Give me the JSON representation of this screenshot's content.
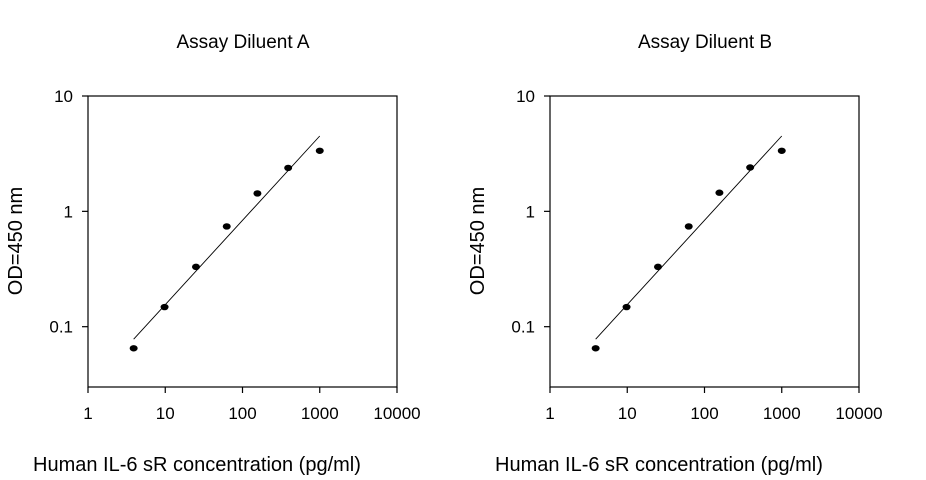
{
  "chart_data": [
    {
      "type": "scatter",
      "title": "Assay Diluent A",
      "xlabel": "Human IL-6 sR concentration (pg/ml)",
      "ylabel": "OD=450 nm",
      "xscale": "log",
      "yscale": "log",
      "xlim": [
        1,
        10000
      ],
      "ylim": [
        0.03,
        10
      ],
      "x_ticks": [
        "1",
        "10",
        "100",
        "1000",
        "10000"
      ],
      "y_ticks": [
        "0.1",
        "1",
        "10"
      ],
      "grid": false,
      "legend": "none",
      "series": [
        {
          "x": [
            3.9,
            9.8,
            25,
            62.5,
            156,
            390,
            1000
          ],
          "y": [
            0.065,
            0.148,
            0.33,
            0.74,
            1.43,
            2.38,
            3.35
          ]
        }
      ],
      "fit_line": {
        "x": [
          3.9,
          1000
        ],
        "y": [
          0.078,
          4.5
        ]
      }
    },
    {
      "type": "scatter",
      "title": "Assay Diluent B",
      "xlabel": "Human IL-6 sR concentration (pg/ml)",
      "ylabel": "OD=450 nm",
      "xscale": "log",
      "yscale": "log",
      "xlim": [
        1,
        10000
      ],
      "ylim": [
        0.03,
        10
      ],
      "x_ticks": [
        "1",
        "10",
        "100",
        "1000",
        "10000"
      ],
      "y_ticks": [
        "0.1",
        "1",
        "10"
      ],
      "grid": false,
      "legend": "none",
      "series": [
        {
          "x": [
            3.9,
            9.8,
            25,
            62.5,
            156,
            390,
            1000
          ],
          "y": [
            0.065,
            0.148,
            0.33,
            0.74,
            1.45,
            2.4,
            3.35
          ]
        }
      ],
      "fit_line": {
        "x": [
          3.9,
          1000
        ],
        "y": [
          0.078,
          4.5
        ]
      }
    }
  ]
}
